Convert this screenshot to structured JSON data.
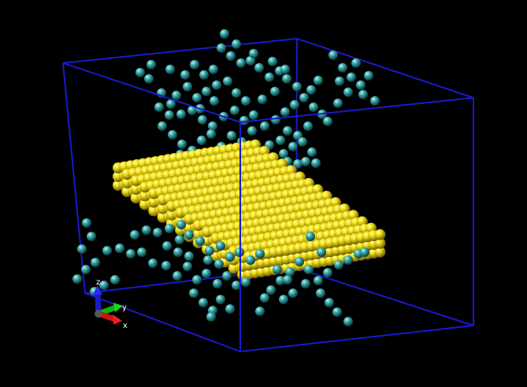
{
  "scene": {
    "background": "#000000",
    "box_color": "#1a1acc",
    "slab_color": "#e8d800",
    "particle_color": "#2fa6a6"
  },
  "axes": {
    "x_label": "x",
    "y_label": "y",
    "z_label": "z",
    "x_color": "#d01010",
    "y_color": "#10b010",
    "z_color": "#1a1acc"
  }
}
